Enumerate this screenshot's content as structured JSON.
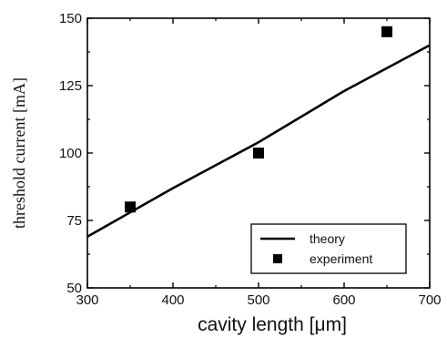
{
  "chart_data": {
    "type": "line",
    "xlabel": "cavity length [μm]",
    "ylabel": "threshold current [mA]",
    "xlim": [
      300,
      700
    ],
    "ylim": [
      50,
      150
    ],
    "xticks": [
      300,
      400,
      500,
      600,
      700
    ],
    "yticks": [
      50,
      75,
      100,
      125,
      150
    ],
    "grid": false,
    "legend_position": "bottom-right",
    "series": [
      {
        "name": "theory",
        "style": "line",
        "color": "#000000",
        "x": [
          300,
          400,
          500,
          600,
          700
        ],
        "y": [
          69,
          87,
          104,
          123,
          140
        ]
      },
      {
        "name": "experiment",
        "style": "square-marker",
        "color": "#000000",
        "x": [
          350,
          500,
          650
        ],
        "y": [
          80,
          100,
          145
        ]
      }
    ]
  }
}
